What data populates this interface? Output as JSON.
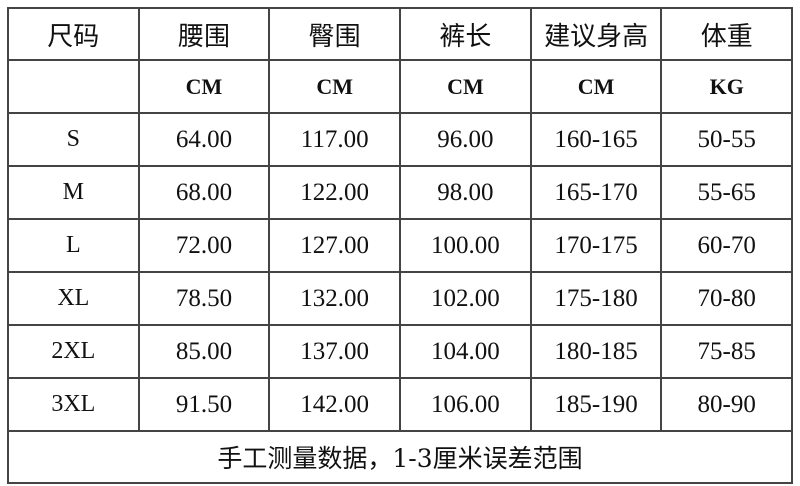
{
  "headers": [
    "尺码",
    "腰围",
    "臀围",
    "裤长",
    "建议身高",
    "体重"
  ],
  "units": [
    "",
    "CM",
    "CM",
    "CM",
    "CM",
    "KG"
  ],
  "rows": [
    [
      "S",
      "64.00",
      "117.00",
      "96.00",
      "160-165",
      "50-55"
    ],
    [
      "M",
      "68.00",
      "122.00",
      "98.00",
      "165-170",
      "55-65"
    ],
    [
      "L",
      "72.00",
      "127.00",
      "100.00",
      "170-175",
      "60-70"
    ],
    [
      "XL",
      "78.50",
      "132.00",
      "102.00",
      "175-180",
      "70-80"
    ],
    [
      "2XL",
      "85.00",
      "137.00",
      "104.00",
      "180-185",
      "75-85"
    ],
    [
      "3XL",
      "91.50",
      "142.00",
      "106.00",
      "185-190",
      "80-90"
    ]
  ],
  "footer": "手工测量数据，1-3厘米误差范围"
}
